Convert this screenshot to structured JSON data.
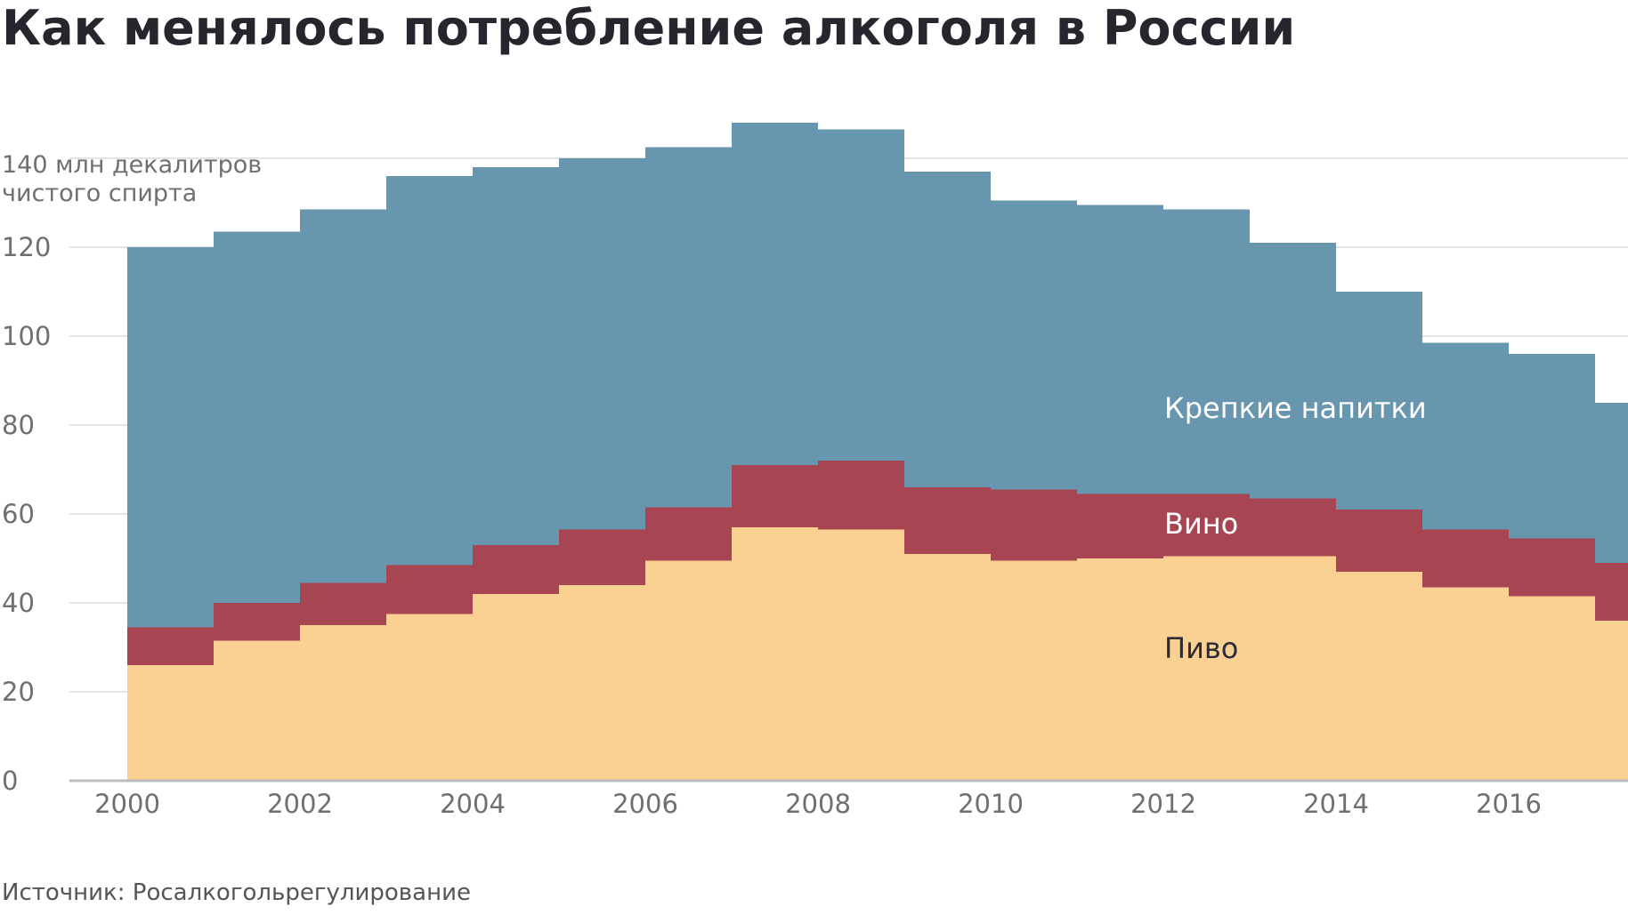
{
  "chart_data": {
    "type": "area",
    "title": "Как менялось потребление алкоголя в России",
    "ylabel": [
      "140 млн декалитров",
      "чистого спирта"
    ],
    "source": "Источник: Росалкогольрегулирование",
    "x": [
      2000,
      2001,
      2002,
      2003,
      2004,
      2005,
      2006,
      2007,
      2008,
      2009,
      2010,
      2011,
      2012,
      2013,
      2014,
      2015,
      2016,
      2017
    ],
    "x_tick_labels": [
      "2000",
      "2002",
      "2004",
      "2006",
      "2008",
      "2010",
      "2012",
      "2014",
      "2016"
    ],
    "y_ticks": [
      0,
      20,
      40,
      60,
      80,
      100,
      120
    ],
    "ylim": [
      0,
      150
    ],
    "stacked": true,
    "step": true,
    "grid": true,
    "series": [
      {
        "name": "Пиво",
        "color": "#fbd093",
        "label_color": "#2b2b35",
        "values": [
          26,
          31.5,
          35,
          37.5,
          42,
          44,
          49.5,
          57,
          56.5,
          51,
          49.5,
          50,
          50.5,
          50.5,
          47,
          43.5,
          41.5,
          36
        ]
      },
      {
        "name": "Вино",
        "color": "#a84552",
        "label_color": "#ffffff",
        "values": [
          8.5,
          8.5,
          9.5,
          11,
          11,
          12.5,
          12,
          14,
          15.5,
          15,
          16,
          14.5,
          14,
          13,
          14,
          13,
          13,
          13
        ]
      },
      {
        "name": "Крепкие напитки",
        "color": "#6896ae",
        "label_color": "#ffffff",
        "values": [
          85.5,
          83.5,
          84,
          87.5,
          85,
          83.5,
          81,
          77,
          74.5,
          71,
          65,
          65,
          64,
          57.5,
          49,
          42,
          41.5,
          36
        ]
      }
    ]
  }
}
